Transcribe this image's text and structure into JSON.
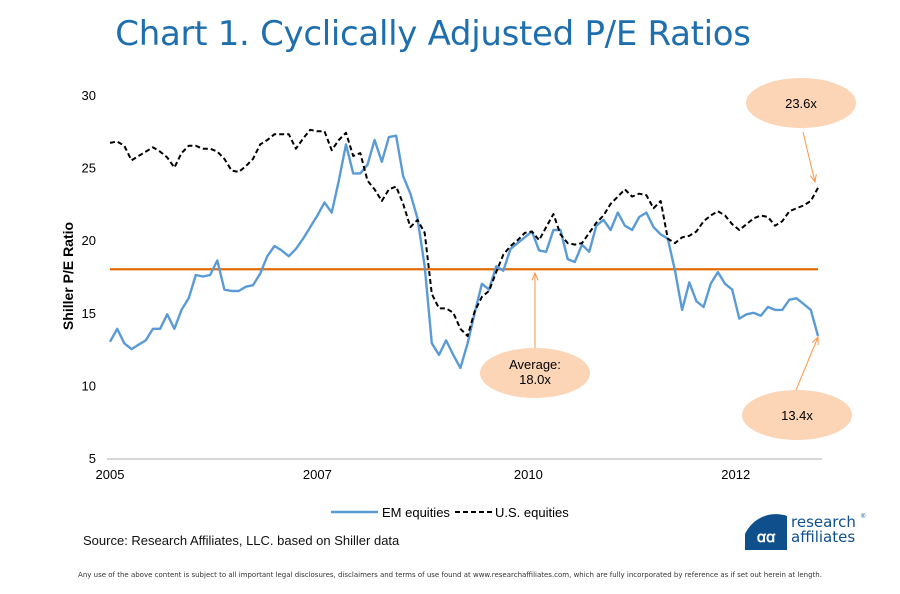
{
  "title": "Chart 1. Cyclically Adjusted P/E Ratios",
  "source": "Source: Research Affiliates, LLC. based on Shiller data",
  "footer": "Any use of the above content is subject to all important legal disclosures, disclaimers and terms of use found at www.researchaffiliates.com, which are fully incorporated by reference as if set out herein at length.",
  "logo": {
    "line1": "research",
    "line2": "affiliates",
    "mark": "®"
  },
  "colors": {
    "title": "#1f6fae",
    "em": "#5b9bd5",
    "us": "#000000",
    "average": "#e36c0a",
    "callout": "#fbd5b5",
    "callout_arrow": "#f79646"
  },
  "chart_data": {
    "type": "line",
    "title": "Chart 1. Cyclically Adjusted P/E Ratios",
    "xlabel": "",
    "ylabel": "Shiller P/E Ratio",
    "ylim": [
      5,
      30
    ],
    "yticks": [
      "5",
      "10",
      "15",
      "20",
      "25",
      "30"
    ],
    "x_count": 100,
    "x_ticks": [
      {
        "label": "2005",
        "index": 0
      },
      {
        "label": "2007",
        "index": 29
      },
      {
        "label": "2010",
        "index": 58.5
      },
      {
        "label": "2012",
        "index": 87.5
      }
    ],
    "legend_position": "bottom",
    "grid": false,
    "series": [
      {
        "name": "EM equities",
        "style": "solid",
        "values": [
          13.0,
          13.9,
          12.9,
          12.5,
          12.8,
          13.1,
          13.9,
          13.9,
          14.9,
          13.9,
          15.2,
          16.0,
          17.6,
          17.5,
          17.6,
          18.6,
          16.6,
          16.5,
          16.5,
          16.8,
          16.9,
          17.7,
          18.9,
          19.6,
          19.3,
          18.9,
          19.4,
          20.1,
          20.9,
          21.7,
          22.6,
          21.9,
          24.1,
          26.6,
          24.6,
          24.6,
          25.2,
          26.9,
          25.4,
          27.1,
          27.2,
          24.4,
          23.2,
          21.5,
          18.2,
          12.9,
          12.1,
          13.1,
          12.1,
          11.2,
          12.9,
          15.0,
          17.0,
          16.6,
          18.2,
          17.9,
          19.4,
          19.8,
          20.2,
          20.6,
          19.3,
          19.2,
          20.7,
          20.7,
          18.7,
          18.5,
          19.7,
          19.2,
          21.0,
          21.4,
          20.7,
          21.9,
          21.0,
          20.7,
          21.6,
          21.9,
          20.9,
          20.4,
          20.1,
          17.9,
          15.2,
          17.1,
          15.8,
          15.4,
          17.0,
          17.8,
          17.0,
          16.6,
          14.6,
          14.9,
          15.0,
          14.8,
          15.4,
          15.2,
          15.2,
          15.9,
          16.0,
          15.6,
          15.2,
          13.4
        ]
      },
      {
        "name": "U.S. equities",
        "style": "dashed",
        "values": [
          26.7,
          26.8,
          26.5,
          25.5,
          25.8,
          26.1,
          26.4,
          26.1,
          25.7,
          25.0,
          26.0,
          26.5,
          26.5,
          26.3,
          26.3,
          26.1,
          25.6,
          24.8,
          24.7,
          25.1,
          25.6,
          26.6,
          26.9,
          27.3,
          27.3,
          27.3,
          26.3,
          27.0,
          27.6,
          27.5,
          27.5,
          26.2,
          26.9,
          27.4,
          25.8,
          26.0,
          24.1,
          23.5,
          22.7,
          23.5,
          23.7,
          22.5,
          20.9,
          21.4,
          20.5,
          16.3,
          15.3,
          15.3,
          15.0,
          13.9,
          13.4,
          15.1,
          16.1,
          16.5,
          17.8,
          19.0,
          19.6,
          20.0,
          20.5,
          20.6,
          20.0,
          20.9,
          21.8,
          20.4,
          19.8,
          19.7,
          19.8,
          20.5,
          21.2,
          21.7,
          22.5,
          23.0,
          23.5,
          23.0,
          23.2,
          23.1,
          22.2,
          22.7,
          20.1,
          19.8,
          20.2,
          20.3,
          20.6,
          21.3,
          21.7,
          22.0,
          21.7,
          21.1,
          20.7,
          21.1,
          21.5,
          21.7,
          21.6,
          21.0,
          21.3,
          22.0,
          22.2,
          22.4,
          22.7,
          23.6
        ]
      }
    ],
    "reference_line": {
      "name": "Average",
      "value": 18.0
    },
    "annotations": [
      {
        "id": "us_latest",
        "text": "23.6x",
        "target_series": "U.S. equities",
        "target_index": 99,
        "value": 23.6
      },
      {
        "id": "average",
        "text_line1": "Average:",
        "text_line2": "18.0x",
        "value": 18.0,
        "target_index": 59
      },
      {
        "id": "em_latest",
        "text": "13.4x",
        "target_series": "EM equities",
        "target_index": 99,
        "value": 13.4
      }
    ]
  }
}
